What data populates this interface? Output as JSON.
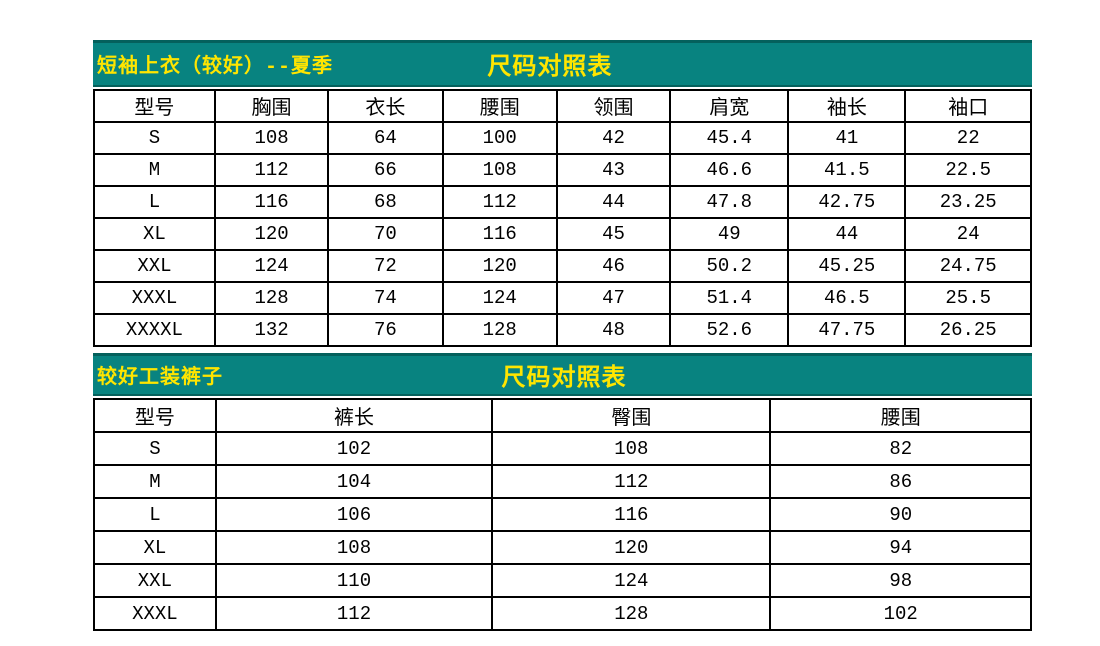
{
  "colors": {
    "banner_bg": "#088380",
    "banner_edge": "#04605c",
    "banner_text": "#ffe500",
    "grid_border": "#000000",
    "cell_bg": "#ffffff",
    "cell_text": "#000000"
  },
  "tables": [
    {
      "banner": {
        "title": "短袖上衣（较好）--夏季",
        "subtitle": "尺码对照表"
      },
      "headers": [
        "型号",
        "胸围",
        "衣长",
        "腰围",
        "领围",
        "肩宽",
        "袖长",
        "袖口"
      ],
      "col_widths": [
        "12.9%",
        "12.1%",
        "12.2%",
        "12.2%",
        "12.1%",
        "12.6%",
        "12.5%",
        "13.4%"
      ],
      "rows": [
        [
          "S",
          "108",
          "64",
          "100",
          "42",
          "45.4",
          "41",
          "22"
        ],
        [
          "M",
          "112",
          "66",
          "108",
          "43",
          "46.6",
          "41.5",
          "22.5"
        ],
        [
          "L",
          "116",
          "68",
          "112",
          "44",
          "47.8",
          "42.75",
          "23.25"
        ],
        [
          "XL",
          "120",
          "70",
          "116",
          "45",
          "49",
          "44",
          "24"
        ],
        [
          "XXL",
          "124",
          "72",
          "120",
          "46",
          "50.2",
          "45.25",
          "24.75"
        ],
        [
          "XXXL",
          "128",
          "74",
          "124",
          "47",
          "51.4",
          "46.5",
          "25.5"
        ],
        [
          "XXXXL",
          "132",
          "76",
          "128",
          "48",
          "52.6",
          "47.75",
          "26.25"
        ]
      ]
    },
    {
      "banner": {
        "title": "较好工装裤子",
        "subtitle": "尺码对照表"
      },
      "headers": [
        "型号",
        "裤长",
        "臀围",
        "腰围"
      ],
      "col_widths": [
        "13%",
        "29.5%",
        "29.7%",
        "27.8%"
      ],
      "rows": [
        [
          "S",
          "102",
          "108",
          "82"
        ],
        [
          "M",
          "104",
          "112",
          "86"
        ],
        [
          "L",
          "106",
          "116",
          "90"
        ],
        [
          "XL",
          "108",
          "120",
          "94"
        ],
        [
          "XXL",
          "110",
          "124",
          "98"
        ],
        [
          "XXXL",
          "112",
          "128",
          "102"
        ]
      ]
    }
  ]
}
